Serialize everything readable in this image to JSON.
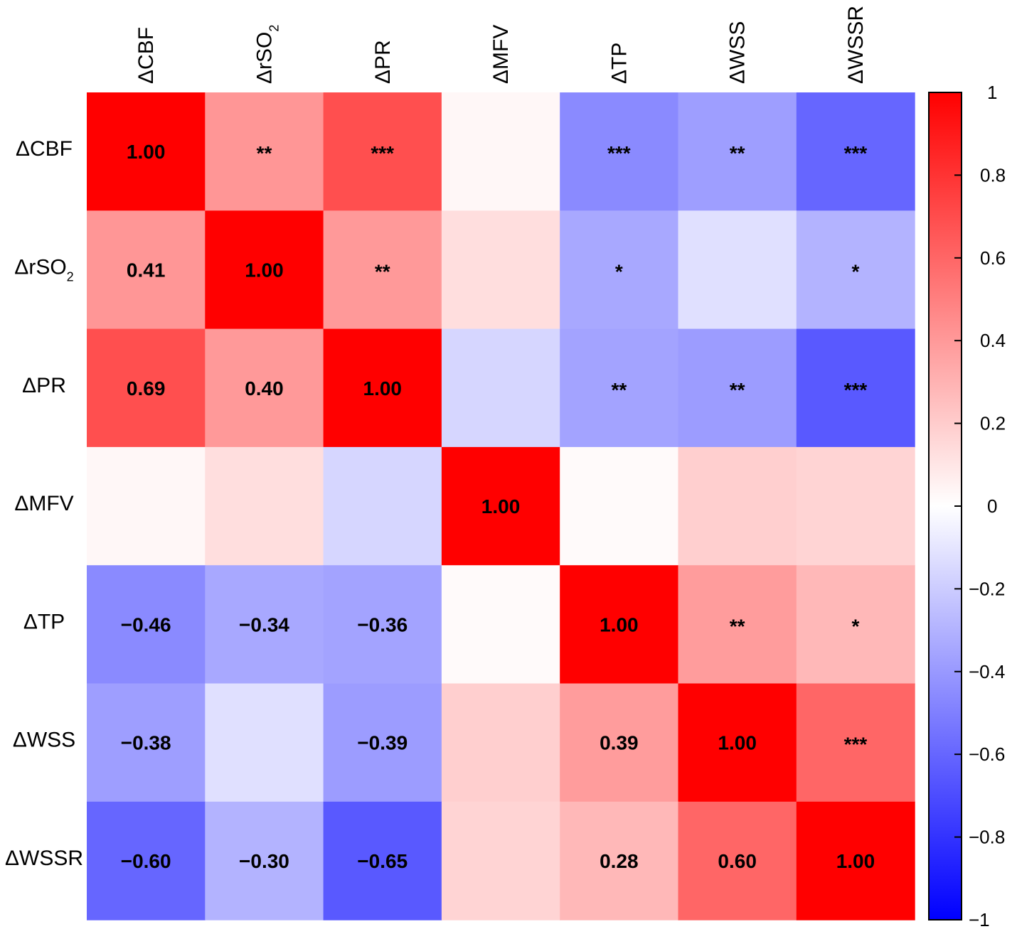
{
  "chart_data": {
    "type": "heatmap",
    "title": "",
    "columns": [
      {
        "main": "ΔCBF",
        "sub": ""
      },
      {
        "main": "ΔrSO",
        "sub": "2"
      },
      {
        "main": "ΔPR",
        "sub": ""
      },
      {
        "main": "ΔMFV",
        "sub": ""
      },
      {
        "main": "ΔTP",
        "sub": ""
      },
      {
        "main": "ΔWSS",
        "sub": ""
      },
      {
        "main": "ΔWSSR",
        "sub": ""
      }
    ],
    "rows": [
      {
        "main": "ΔCBF",
        "sub": ""
      },
      {
        "main": "ΔrSO",
        "sub": "2"
      },
      {
        "main": "ΔPR",
        "sub": ""
      },
      {
        "main": "ΔMFV",
        "sub": ""
      },
      {
        "main": "ΔTP",
        "sub": ""
      },
      {
        "main": "ΔWSS",
        "sub": ""
      },
      {
        "main": "ΔWSSR",
        "sub": ""
      }
    ],
    "values": [
      [
        1.0,
        0.41,
        0.69,
        0.03,
        -0.46,
        -0.38,
        -0.6
      ],
      [
        0.41,
        1.0,
        0.4,
        0.13,
        -0.34,
        -0.12,
        -0.3
      ],
      [
        0.69,
        0.4,
        1.0,
        -0.16,
        -0.36,
        -0.39,
        -0.65
      ],
      [
        0.03,
        0.13,
        -0.16,
        1.0,
        0.02,
        0.19,
        0.17
      ],
      [
        -0.46,
        -0.34,
        -0.36,
        0.02,
        1.0,
        0.39,
        0.28
      ],
      [
        -0.38,
        -0.12,
        -0.39,
        0.19,
        0.39,
        1.0,
        0.6
      ],
      [
        -0.6,
        -0.3,
        -0.65,
        0.17,
        0.28,
        0.6,
        1.0
      ]
    ],
    "cell_labels": [
      [
        "1.00",
        "**",
        "***",
        "",
        "***",
        "**",
        "***"
      ],
      [
        "0.41",
        "1.00",
        "**",
        "",
        "*",
        "",
        "*"
      ],
      [
        "0.69",
        "0.40",
        "1.00",
        "",
        "**",
        "**",
        "***"
      ],
      [
        "",
        "",
        "",
        "1.00",
        "",
        "",
        ""
      ],
      [
        "−0.46",
        "−0.34",
        "−0.36",
        "",
        "1.00",
        "**",
        "*"
      ],
      [
        "−0.38",
        "",
        "−0.39",
        "",
        "0.39",
        "1.00",
        "***"
      ],
      [
        "−0.60",
        "−0.30",
        "−0.65",
        "",
        "0.28",
        "0.60",
        "1.00"
      ]
    ],
    "colorbar": {
      "range": [
        -1,
        1
      ],
      "tick_values": [
        1,
        0.8,
        0.6,
        0.4,
        0.2,
        0,
        -0.2,
        -0.4,
        -0.6,
        -0.8,
        -1
      ],
      "tick_labels": [
        "1",
        "0.8",
        "0.6",
        "0.4",
        "0.2",
        "0",
        "−0.2",
        "−0.4",
        "−0.6",
        "−0.8",
        "−1"
      ],
      "color_min": "#0000ff",
      "color_mid": "#ffffff",
      "color_max": "#ff0000"
    },
    "legend": "right"
  }
}
